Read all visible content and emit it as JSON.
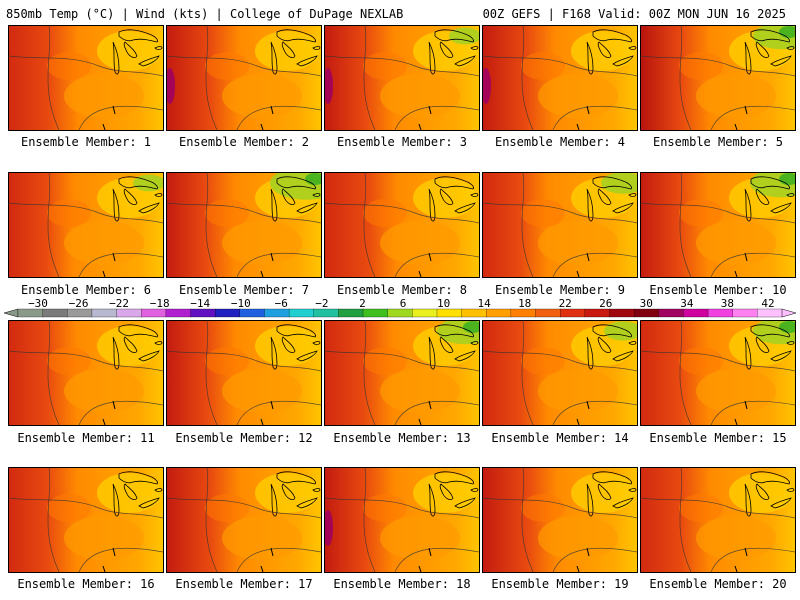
{
  "header": {
    "left": "850mb Temp (°C) | Wind (kts) | College of DuPage NEXLAB",
    "right": "00Z GEFS | F168 Valid: 00Z MON JUN 16 2025"
  },
  "panel_label_prefix": "Ensemble Member: ",
  "members": [
    {
      "label": "Ensemble Member: 1",
      "west": "#d22a10",
      "warm": 0.7,
      "green": 0.0
    },
    {
      "label": "Ensemble Member: 2",
      "west": "#c41c10",
      "warm": 0.8,
      "green": 0.0,
      "magenta": true
    },
    {
      "label": "Ensemble Member: 3",
      "west": "#c41c10",
      "warm": 0.7,
      "green": 0.2,
      "magenta": true
    },
    {
      "label": "Ensemble Member: 4",
      "west": "#c41c10",
      "warm": 0.8,
      "green": 0.0,
      "magenta": true
    },
    {
      "label": "Ensemble Member: 5",
      "west": "#b8140e",
      "warm": 0.7,
      "green": 0.6
    },
    {
      "label": "Ensemble Member: 6",
      "west": "#d22a10",
      "warm": 0.5,
      "green": 0.2
    },
    {
      "label": "Ensemble Member: 7",
      "west": "#c41c10",
      "warm": 0.6,
      "green": 0.9
    },
    {
      "label": "Ensemble Member: 8",
      "west": "#d22a10",
      "warm": 0.8,
      "green": 0.0
    },
    {
      "label": "Ensemble Member: 9",
      "west": "#d22a10",
      "warm": 0.5,
      "green": 0.4
    },
    {
      "label": "Ensemble Member: 10",
      "west": "#c41c10",
      "warm": 0.6,
      "green": 0.7
    },
    {
      "label": "Ensemble Member: 11",
      "west": "#d22a10",
      "warm": 0.6,
      "green": 0.0
    },
    {
      "label": "Ensemble Member: 12",
      "west": "#c41c10",
      "warm": 0.7,
      "green": 0.0
    },
    {
      "label": "Ensemble Member: 13",
      "west": "#d22a10",
      "warm": 0.6,
      "green": 0.6
    },
    {
      "label": "Ensemble Member: 14",
      "west": "#d22a10",
      "warm": 0.5,
      "green": 0.3
    },
    {
      "label": "Ensemble Member: 15",
      "west": "#d22a10",
      "warm": 0.6,
      "green": 0.6
    },
    {
      "label": "Ensemble Member: 16",
      "west": "#d22a10",
      "warm": 0.6,
      "green": 0.0
    },
    {
      "label": "Ensemble Member: 17",
      "west": "#c41c10",
      "warm": 0.8,
      "green": 0.0
    },
    {
      "label": "Ensemble Member: 18",
      "west": "#c41c10",
      "warm": 0.7,
      "green": 0.0,
      "magenta": true
    },
    {
      "label": "Ensemble Member: 19",
      "west": "#c41c10",
      "warm": 0.9,
      "green": 0.0
    },
    {
      "label": "Ensemble Member: 20",
      "west": "#d22a10",
      "warm": 0.7,
      "green": 0.0
    }
  ],
  "colorbar": {
    "ticks": [
      "−30",
      "−26",
      "−22",
      "−18",
      "−14",
      "−10",
      "−6",
      "−2",
      "2",
      "6",
      "10",
      "14",
      "18",
      "22",
      "26",
      "30",
      "34",
      "38",
      "42"
    ],
    "colors": [
      "#8a9a8a",
      "#7a7a7a",
      "#9a9a9a",
      "#b8b8d0",
      "#d8a8e8",
      "#e060e0",
      "#b020d0",
      "#6010c0",
      "#2020c0",
      "#2060e0",
      "#20a0e0",
      "#20d0d0",
      "#20c0a0",
      "#20a040",
      "#40c020",
      "#a0d820",
      "#e8f020",
      "#ffe000",
      "#ffc000",
      "#ffa000",
      "#ff8000",
      "#f06010",
      "#e03010",
      "#c81810",
      "#a00810",
      "#800010",
      "#a00060",
      "#d000a0",
      "#f040e0",
      "#ff80f0",
      "#ffc0ff"
    ]
  }
}
